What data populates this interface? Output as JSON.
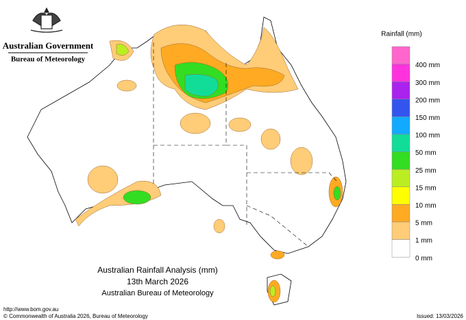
{
  "header": {
    "government": "Australian Government",
    "agency": "Bureau of Meteorology"
  },
  "legend": {
    "title": "Rainfall (mm)",
    "bands": [
      {
        "color": "#ff66cc"
      },
      {
        "color": "#ff33dd",
        "label": "400 mm"
      },
      {
        "color": "#aa22ee",
        "label": "300 mm"
      },
      {
        "color": "#3355ee",
        "label": "200 mm"
      },
      {
        "color": "#11aaff",
        "label": "150 mm"
      },
      {
        "color": "#11dd99",
        "label": "100 mm"
      },
      {
        "color": "#33dd22",
        "label": "50 mm"
      },
      {
        "color": "#bbee22",
        "label": "25 mm"
      },
      {
        "color": "#ffff00",
        "label": "15 mm"
      },
      {
        "color": "#ffaa22",
        "label": "10 mm"
      },
      {
        "color": "#ffcc77",
        "label": "5 mm"
      },
      {
        "color": "#ffffff",
        "label": "1 mm"
      }
    ],
    "bottom_label": "0 mm"
  },
  "map_title": {
    "line1": "Australian Rainfall Analysis (mm)",
    "line2": "13th March 2026",
    "line3": "Australian Bureau of Meteorology"
  },
  "footer": {
    "url": "http://www.bom.gov.au",
    "copyright": "© Commonwealth of Australia 2026, Bureau of Meteorology",
    "issued": "Issued: 13/03/2026"
  }
}
